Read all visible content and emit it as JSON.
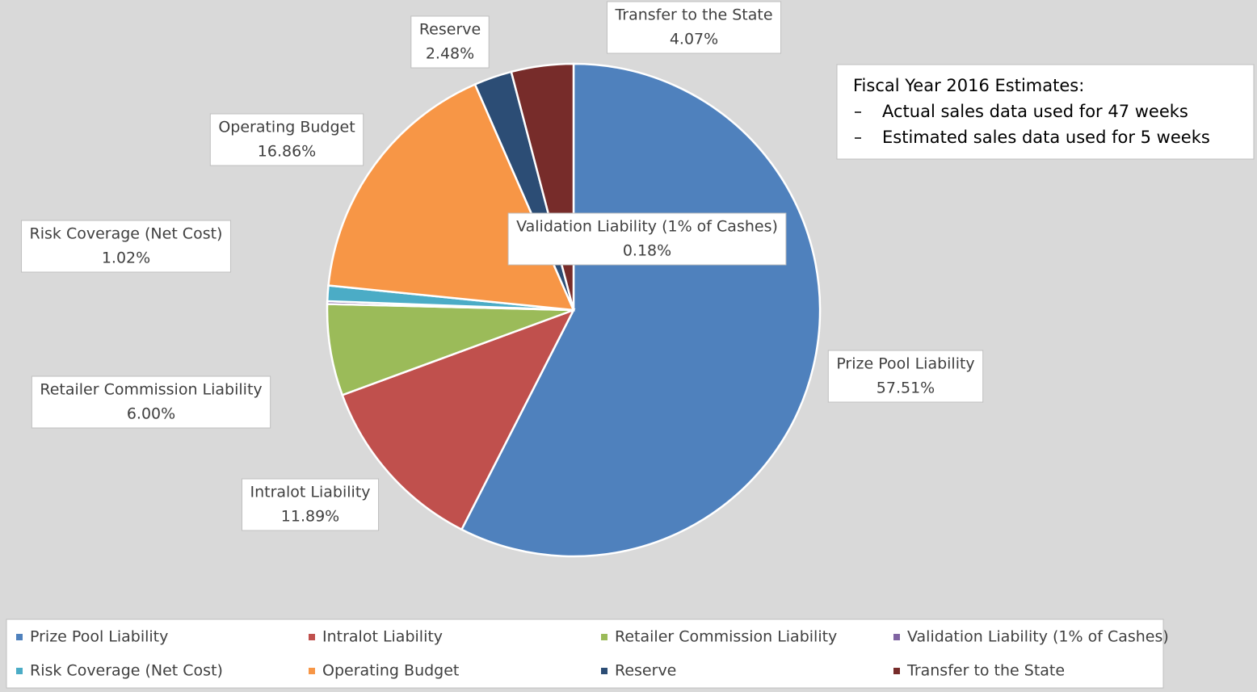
{
  "chart_data": {
    "type": "pie",
    "categories": [
      "Prize Pool Liability",
      "Intralot Liability",
      "Retailer Commission Liability",
      "Validation Liability (1% of Cashes)",
      "Risk Coverage (Net Cost)",
      "Operating Budget",
      "Reserve",
      "Transfer to the State"
    ],
    "values": [
      57.51,
      11.89,
      6.0,
      0.18,
      1.02,
      16.86,
      2.48,
      4.07
    ],
    "value_labels": [
      "57.51%",
      "11.89%",
      "6.00%",
      "0.18%",
      "1.02%",
      "16.86%",
      "2.48%",
      "4.07%"
    ],
    "colors": [
      "#4f81bd",
      "#c0504d",
      "#9bbb59",
      "#8064a2",
      "#4bacc6",
      "#f79646",
      "#2c4d75",
      "#772c2a"
    ],
    "legend": "bottom",
    "annotation": {
      "title": "Fiscal Year 2016 Estimates:",
      "lines": [
        "Actual sales data used for 47 weeks",
        "Estimated sales data used for 5 weeks"
      ]
    }
  }
}
